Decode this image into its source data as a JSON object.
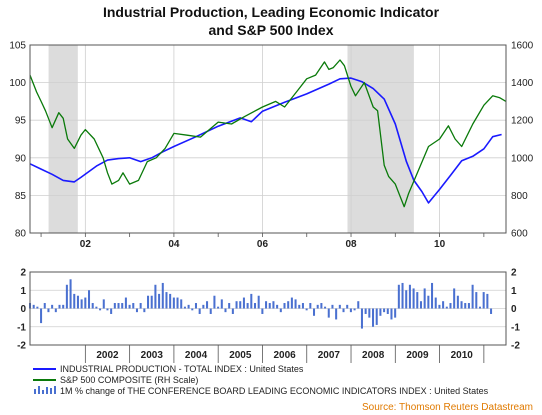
{
  "chart_data": [
    {
      "type": "line",
      "title_line1": "Industrial Production, Leading Economic Indicator",
      "title_line2": "and S&P 500 Index",
      "ylim_left": [
        80,
        105
      ],
      "yticks_left": [
        "80",
        "85",
        "90",
        "95",
        "100",
        "105"
      ],
      "ylim_right": [
        600,
        1600
      ],
      "yticks_right": [
        "600",
        "800",
        "1000",
        "1200",
        "1400",
        "1600"
      ],
      "xticks": [
        "02",
        "04",
        "06",
        "08",
        "10"
      ],
      "xtick_positions": [
        2002,
        2004,
        2006,
        2008,
        2010
      ],
      "xlim": [
        2000.75,
        2011.5
      ],
      "recessions": [
        [
          2001.17,
          2001.83
        ],
        [
          2007.92,
          2009.42
        ]
      ],
      "grid": true,
      "series": [
        {
          "name": "INDUSTRIAL PRODUCTION - TOTAL INDEX : United States",
          "axis": "left",
          "color": "#1a1aff",
          "x": [
            2000.75,
            2001.0,
            2001.25,
            2001.5,
            2001.75,
            2001.9,
            2002.25,
            2002.5,
            2002.75,
            2003.0,
            2003.25,
            2003.5,
            2003.75,
            2004.0,
            2004.5,
            2005.0,
            2005.5,
            2005.75,
            2006.0,
            2006.5,
            2007.0,
            2007.5,
            2007.75,
            2008.0,
            2008.25,
            2008.5,
            2008.75,
            2009.0,
            2009.25,
            2009.42,
            2009.6,
            2009.75,
            2010.0,
            2010.25,
            2010.5,
            2010.75,
            2011.0,
            2011.2,
            2011.4
          ],
          "y": [
            89.2,
            88.5,
            87.8,
            87.0,
            86.8,
            87.4,
            88.9,
            89.7,
            89.9,
            90.0,
            89.5,
            90.0,
            90.8,
            91.5,
            92.8,
            94.2,
            95.3,
            94.8,
            96.2,
            97.4,
            98.5,
            99.8,
            100.5,
            100.6,
            100.1,
            99.2,
            97.8,
            94.5,
            89.5,
            87.0,
            85.5,
            84.0,
            85.8,
            87.7,
            89.6,
            90.2,
            91.2,
            92.8,
            93.1
          ]
        },
        {
          "name": "S&P 500 COMPOSITE (RH Scale)",
          "axis": "right",
          "color": "#0a7a0a",
          "x": [
            2000.75,
            2000.9,
            2001.0,
            2001.1,
            2001.25,
            2001.4,
            2001.5,
            2001.6,
            2001.75,
            2001.9,
            2002.0,
            2002.2,
            2002.4,
            2002.5,
            2002.6,
            2002.75,
            2002.85,
            2003.0,
            2003.2,
            2003.4,
            2003.6,
            2003.8,
            2004.0,
            2004.3,
            2004.6,
            2005.0,
            2005.3,
            2005.6,
            2006.0,
            2006.3,
            2006.5,
            2006.8,
            2007.0,
            2007.2,
            2007.4,
            2007.5,
            2007.6,
            2007.75,
            2007.85,
            2008.0,
            2008.1,
            2008.3,
            2008.5,
            2008.6,
            2008.75,
            2008.85,
            2009.0,
            2009.1,
            2009.2,
            2009.3,
            2009.5,
            2009.75,
            2010.0,
            2010.2,
            2010.35,
            2010.5,
            2010.75,
            2011.0,
            2011.2,
            2011.35,
            2011.5
          ],
          "y": [
            1440,
            1350,
            1300,
            1250,
            1160,
            1240,
            1210,
            1100,
            1050,
            1120,
            1150,
            1100,
            1000,
            920,
            860,
            880,
            920,
            860,
            880,
            980,
            1000,
            1050,
            1130,
            1120,
            1110,
            1190,
            1180,
            1220,
            1270,
            1300,
            1270,
            1360,
            1420,
            1440,
            1510,
            1470,
            1480,
            1520,
            1490,
            1380,
            1330,
            1400,
            1270,
            1250,
            960,
            900,
            860,
            800,
            740,
            810,
            920,
            1060,
            1100,
            1170,
            1100,
            1060,
            1180,
            1280,
            1330,
            1320,
            1300
          ]
        }
      ]
    },
    {
      "type": "bar",
      "series_name": "1M % change of THE CONFERENCE BOARD LEADING ECONOMIC INDICATORS INDEX : United States",
      "color": "#4a70d0",
      "ylim": [
        -2,
        2
      ],
      "yticks": [
        "-2",
        "-1",
        "0",
        "1",
        "2"
      ],
      "year_labels": [
        "2002",
        "2003",
        "2004",
        "2005",
        "2006",
        "2007",
        "2008",
        "2009",
        "2010"
      ],
      "start": 2000.75,
      "step": 0.0833,
      "values": [
        0.3,
        0.2,
        0.1,
        -0.8,
        0.3,
        -0.2,
        0.2,
        -0.2,
        0.2,
        0.2,
        1.3,
        1.6,
        0.8,
        0.7,
        0.5,
        0.6,
        1.0,
        0.3,
        0.1,
        -0.1,
        0.5,
        -0.1,
        -0.3,
        0.3,
        0.3,
        0.3,
        0.6,
        0.2,
        0.3,
        -0.2,
        0.3,
        -0.2,
        0.7,
        0.7,
        1.3,
        0.8,
        1.4,
        0.9,
        0.8,
        0.6,
        0.6,
        0.5,
        0.1,
        0.2,
        -0.1,
        0.3,
        -0.3,
        0.2,
        0.4,
        -0.3,
        0.7,
        0.1,
        0.5,
        -0.2,
        0.3,
        -0.3,
        0.4,
        0.4,
        0.6,
        0.3,
        0.8,
        0.3,
        0.7,
        -0.3,
        0.4,
        0.3,
        0.4,
        0.2,
        -0.2,
        0.3,
        0.4,
        0.6,
        0.5,
        0.2,
        0.3,
        -0.1,
        0.3,
        -0.4,
        0.2,
        0.3,
        0.1,
        -0.5,
        0.2,
        -0.6,
        0.2,
        -0.2,
        0.2,
        -0.2,
        -0.1,
        0.4,
        -1.1,
        -0.3,
        -0.5,
        -1.0,
        -0.9,
        -0.4,
        -0.2,
        -0.3,
        -0.6,
        -0.5,
        1.3,
        1.4,
        1.0,
        1.3,
        1.1,
        0.9,
        0.4,
        1.1,
        0.7,
        1.4,
        0.6,
        0.2,
        0.4,
        0.1,
        0.3,
        1.1,
        0.7,
        0.4,
        0.3,
        0.3,
        1.3,
        0.9,
        0.1,
        0.9,
        0.8,
        -0.3
      ]
    }
  ],
  "legend": [
    "INDUSTRIAL PRODUCTION - TOTAL INDEX : United States",
    "S&P 500 COMPOSITE (RH Scale)",
    "1M % change of THE CONFERENCE BOARD LEADING ECONOMIC INDICATORS INDEX : United States"
  ],
  "source": "Source: Thomson Reuters Datastream"
}
